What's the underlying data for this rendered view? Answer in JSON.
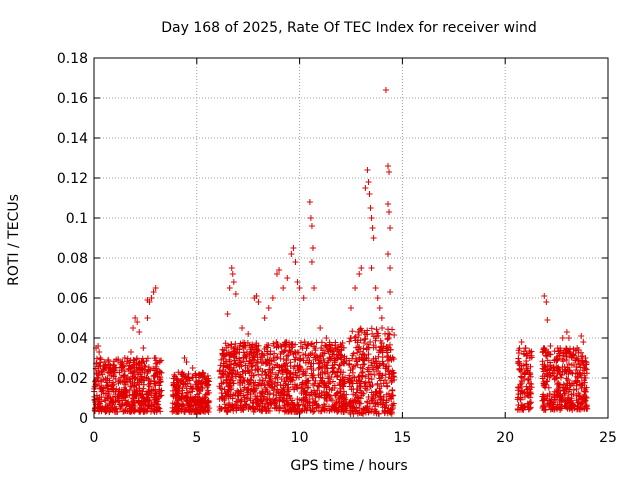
{
  "chart_data": {
    "type": "scatter",
    "title": "Day 168 of 2025, Rate Of TEC Index for receiver wind",
    "xlabel": "GPS time / hours",
    "ylabel": "ROTI / TECUs",
    "xlim": [
      0,
      25
    ],
    "ylim": [
      0,
      0.18
    ],
    "x_ticks": [
      "0",
      "5",
      "10",
      "15",
      "20",
      "25"
    ],
    "y_ticks": [
      "0",
      "0.02",
      "0.04",
      "0.06",
      "0.08",
      "0.1",
      "0.12",
      "0.14",
      "0.16",
      "0.18"
    ],
    "grid": true,
    "marker": "+",
    "color": "#e00000",
    "series": [
      {
        "points": [
          [
            0.1,
            0.035
          ],
          [
            0.2,
            0.036
          ],
          [
            0.25,
            0.033
          ],
          [
            0.3,
            0.03
          ],
          [
            0.5,
            0.028
          ],
          [
            0.8,
            0.026
          ],
          [
            1.0,
            0.024
          ],
          [
            1.3,
            0.027
          ],
          [
            1.5,
            0.03
          ],
          [
            1.8,
            0.033
          ],
          [
            1.9,
            0.045
          ],
          [
            2.0,
            0.05
          ],
          [
            2.1,
            0.048
          ],
          [
            2.2,
            0.043
          ],
          [
            2.4,
            0.035
          ],
          [
            2.6,
            0.059
          ],
          [
            2.7,
            0.058
          ],
          [
            2.8,
            0.06
          ],
          [
            2.9,
            0.063
          ],
          [
            3.0,
            0.065
          ],
          [
            3.0,
            0.03
          ],
          [
            2.6,
            0.05
          ],
          [
            4.4,
            0.03
          ],
          [
            4.5,
            0.028
          ],
          [
            4.8,
            0.025
          ],
          [
            6.3,
            0.032
          ],
          [
            6.5,
            0.052
          ],
          [
            6.6,
            0.065
          ],
          [
            6.7,
            0.075
          ],
          [
            6.75,
            0.072
          ],
          [
            6.8,
            0.068
          ],
          [
            6.9,
            0.062
          ],
          [
            7.2,
            0.045
          ],
          [
            7.5,
            0.042
          ],
          [
            7.8,
            0.06
          ],
          [
            7.9,
            0.061
          ],
          [
            8.0,
            0.058
          ],
          [
            8.3,
            0.05
          ],
          [
            8.5,
            0.055
          ],
          [
            8.7,
            0.06
          ],
          [
            8.9,
            0.072
          ],
          [
            9.0,
            0.074
          ],
          [
            9.2,
            0.065
          ],
          [
            9.4,
            0.07
          ],
          [
            9.6,
            0.082
          ],
          [
            9.7,
            0.085
          ],
          [
            9.8,
            0.078
          ],
          [
            9.9,
            0.068
          ],
          [
            10.0,
            0.065
          ],
          [
            10.2,
            0.06
          ],
          [
            10.5,
            0.108
          ],
          [
            10.55,
            0.1
          ],
          [
            10.6,
            0.096
          ],
          [
            10.65,
            0.085
          ],
          [
            10.6,
            0.078
          ],
          [
            10.7,
            0.065
          ],
          [
            11.0,
            0.045
          ],
          [
            11.3,
            0.04
          ],
          [
            12.5,
            0.055
          ],
          [
            12.7,
            0.065
          ],
          [
            12.9,
            0.072
          ],
          [
            13.0,
            0.075
          ],
          [
            13.2,
            0.115
          ],
          [
            13.3,
            0.124
          ],
          [
            13.35,
            0.118
          ],
          [
            13.4,
            0.112
          ],
          [
            13.45,
            0.105
          ],
          [
            13.5,
            0.1
          ],
          [
            13.55,
            0.095
          ],
          [
            13.6,
            0.09
          ],
          [
            13.5,
            0.075
          ],
          [
            13.7,
            0.065
          ],
          [
            13.8,
            0.06
          ],
          [
            13.9,
            0.055
          ],
          [
            14.0,
            0.05
          ],
          [
            14.2,
            0.164
          ],
          [
            14.3,
            0.126
          ],
          [
            14.35,
            0.123
          ],
          [
            14.3,
            0.107
          ],
          [
            14.35,
            0.103
          ],
          [
            14.4,
            0.095
          ],
          [
            14.3,
            0.082
          ],
          [
            14.4,
            0.075
          ],
          [
            14.4,
            0.063
          ],
          [
            20.8,
            0.038
          ],
          [
            21.0,
            0.035
          ],
          [
            21.2,
            0.03
          ],
          [
            21.9,
            0.061
          ],
          [
            22.0,
            0.058
          ],
          [
            22.05,
            0.049
          ],
          [
            22.2,
            0.036
          ],
          [
            22.5,
            0.03
          ],
          [
            22.8,
            0.04
          ],
          [
            23.0,
            0.043
          ],
          [
            23.1,
            0.04
          ],
          [
            23.5,
            0.035
          ],
          [
            23.7,
            0.041
          ],
          [
            23.8,
            0.038
          ],
          [
            23.9,
            0.03
          ]
        ],
        "bands": [
          {
            "x": [
              0.0,
              3.3
            ],
            "y": [
              0.003,
              0.03
            ]
          },
          {
            "x": [
              3.8,
              5.6
            ],
            "y": [
              0.003,
              0.023
            ]
          },
          {
            "x": [
              6.1,
              12.3
            ],
            "y": [
              0.003,
              0.038
            ]
          },
          {
            "x": [
              12.4,
              14.6
            ],
            "y": [
              0.002,
              0.045
            ]
          },
          {
            "x": [
              20.6,
              21.3
            ],
            "y": [
              0.004,
              0.035
            ]
          },
          {
            "x": [
              21.8,
              24.0
            ],
            "y": [
              0.004,
              0.035
            ]
          }
        ]
      }
    ]
  }
}
